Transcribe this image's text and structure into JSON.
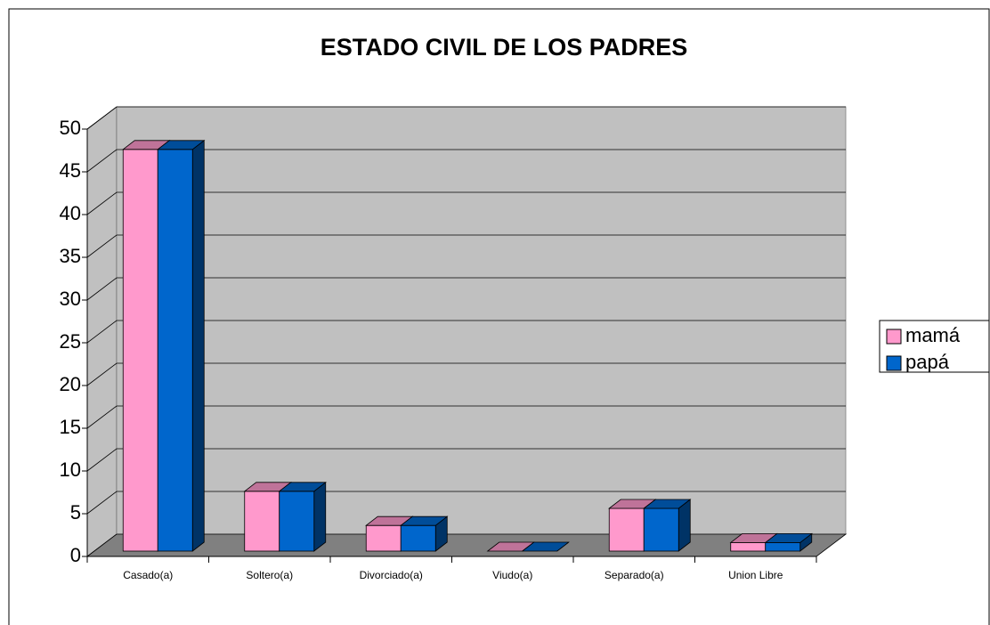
{
  "chart_data": {
    "type": "bar3d",
    "title": "ESTADO CIVIL DE LOS PADRES",
    "categories": [
      "Casado(a)",
      "Soltero(a)",
      "Divorciado(a)",
      "Viudo(a)",
      "Separado(a)",
      "Union Libre"
    ],
    "series": [
      {
        "name": "mamá",
        "color": "#ff99cc",
        "values": [
          47,
          7,
          3,
          0,
          5,
          1
        ]
      },
      {
        "name": "papá",
        "color": "#0066cc",
        "values": [
          47,
          7,
          3,
          0,
          5,
          1
        ]
      }
    ],
    "ylim": [
      0,
      50
    ],
    "yticks": [
      0,
      5,
      10,
      15,
      20,
      25,
      30,
      35,
      40,
      45,
      50
    ],
    "grid": true,
    "legend": "right"
  }
}
